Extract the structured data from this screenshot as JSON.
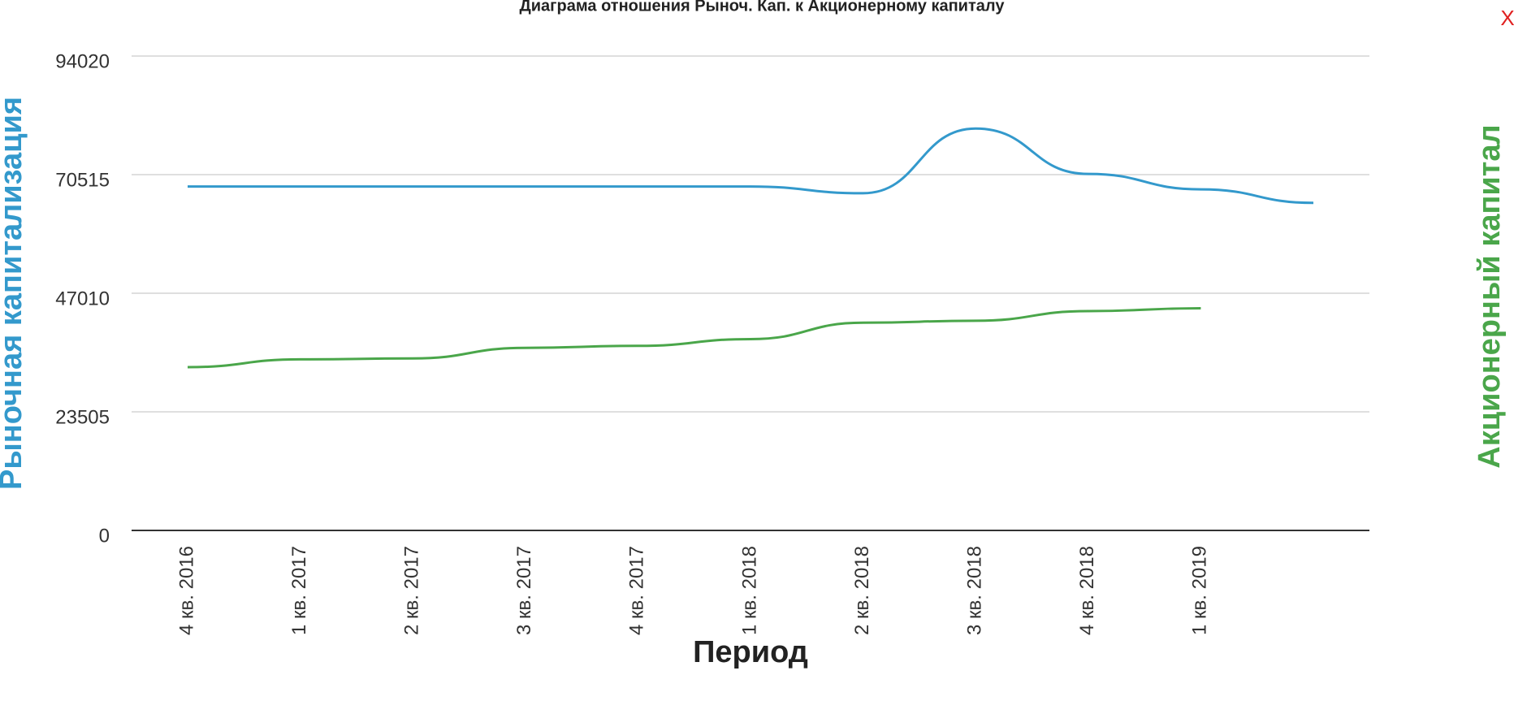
{
  "chart_data": {
    "type": "line",
    "title": "Диаграма отношения Рыноч. Кап. к Акционерному капиталу",
    "xlabel": "Период",
    "ylabel": "Рыночная капитализация",
    "y2label": "Акционерный капитал",
    "close": "X",
    "categories": [
      "4 кв. 2016",
      "1 кв. 2017",
      "2 кв. 2017",
      "3 кв. 2017",
      "4 кв. 2017",
      "1 кв. 2018",
      "2 кв. 2018",
      "3 кв. 2018",
      "4 кв. 2018",
      "1 кв. 2019",
      null
    ],
    "series": [
      {
        "name": "Рыночная капитализация",
        "color": "#3399cc",
        "values": [
          68170,
          68170,
          68170,
          68170,
          68170,
          68170,
          66830,
          79660,
          70660,
          67600,
          64920
        ]
      },
      {
        "name": "Акционерный капитал",
        "color": "#4aa64a",
        "values": [
          32360,
          33900,
          34090,
          36190,
          36580,
          37920,
          41170,
          41560,
          43470,
          44040,
          null
        ]
      }
    ],
    "ylim": [
      0,
      94020
    ],
    "yticks": [
      0,
      23505,
      47010,
      70515,
      94020
    ],
    "grid": true
  }
}
